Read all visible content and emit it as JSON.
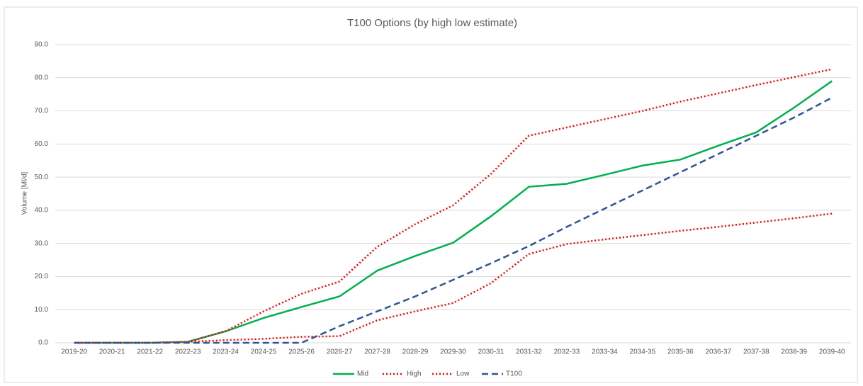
{
  "chart_data": {
    "type": "line",
    "title": "T100 Options (by high low estimate)",
    "y_label": "Volume [Ml/d]",
    "categories": [
      "2019-20",
      "2020-21",
      "2021-22",
      "2022-23",
      "2023-24",
      "2024-25",
      "2025-26",
      "2026-27",
      "2027-28",
      "2028-29",
      "2029-30",
      "2030-31",
      "2031-32",
      "2032-33",
      "2033-34",
      "2034-35",
      "2035-36",
      "2036-37",
      "2037-38",
      "2038-39",
      "2039-40"
    ],
    "series": [
      {
        "name": "Mid",
        "color": "#00b050",
        "dash": "solid",
        "values": [
          0,
          0,
          0,
          0.3,
          3.5,
          7.5,
          10.8,
          14,
          21.8,
          26.2,
          30.2,
          38.2,
          47.1,
          48,
          50.7,
          53.5,
          55.3,
          59.5,
          63.5,
          71,
          79
        ]
      },
      {
        "name": "High",
        "color": "#ff0000",
        "dash": "dotted",
        "values": [
          0,
          0,
          0,
          0.3,
          3.5,
          9.5,
          14.8,
          18.5,
          29,
          35.8,
          41.5,
          51,
          62.5,
          65,
          67.5,
          70,
          72.8,
          75.3,
          77.8,
          80.2,
          82.6
        ]
      },
      {
        "name": "Low",
        "color": "#ff0000",
        "dash": "dotted",
        "values": [
          0,
          0,
          0,
          0.3,
          0.8,
          1.2,
          1.8,
          2,
          6.8,
          9.5,
          12,
          18,
          26.8,
          29.8,
          31.2,
          32.5,
          33.8,
          35,
          36.3,
          37.6,
          39
        ]
      },
      {
        "name": "T100",
        "color": "#2f5597",
        "dash": "dashed",
        "values": [
          0,
          0,
          0,
          0,
          0,
          0,
          0,
          5,
          9.5,
          14,
          19,
          24,
          29.2,
          35,
          40.5,
          46,
          51.5,
          57,
          62.5,
          68,
          74
        ]
      }
    ],
    "ylim": [
      0,
      90
    ],
    "yticks": [
      {
        "value": 0,
        "label": "0.0"
      },
      {
        "value": 10,
        "label": "10.0"
      },
      {
        "value": 20,
        "label": "20.0"
      },
      {
        "value": 30,
        "label": "30.0"
      },
      {
        "value": 40,
        "label": "40.0"
      },
      {
        "value": 50,
        "label": "50.0"
      },
      {
        "value": 60,
        "label": "60.0"
      },
      {
        "value": 70,
        "label": "70.0"
      },
      {
        "value": 80,
        "label": "80.0"
      },
      {
        "value": 90,
        "label": "90.0"
      }
    ],
    "grid": true,
    "legend": "bottom"
  }
}
